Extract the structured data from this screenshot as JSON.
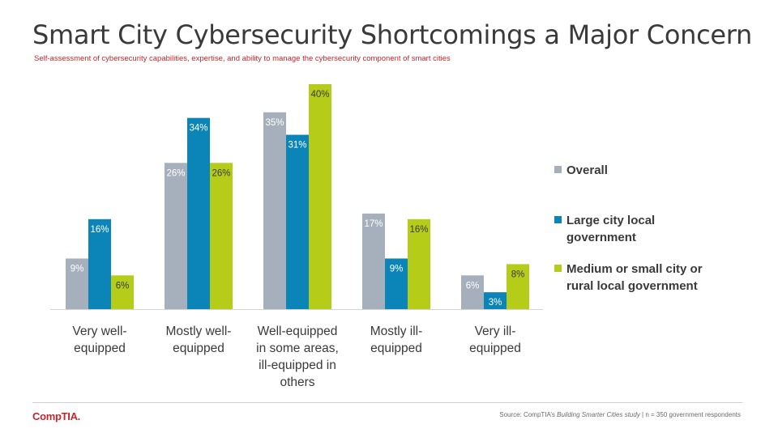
{
  "slide": {
    "title": "Smart City Cybersecurity Shortcomings a Major Concern",
    "subtitle": "Self-assessment of cybersecurity capabilities, expertise, and ability to manage the cybersecurity component of smart cities",
    "logo_text": "CompTIA.",
    "source_prefix": "Source: CompTIA’s ",
    "source_study": "Building Smarter Cities study",
    "source_suffix": " | n = 350 government respondents"
  },
  "chart_data": {
    "type": "bar",
    "categories": [
      [
        "Very well-",
        "equipped"
      ],
      [
        "Mostly well-",
        "equipped"
      ],
      [
        "Well-equipped",
        "in some areas,",
        "ill-equipped in",
        "others"
      ],
      [
        "Mostly ill-",
        "equipped"
      ],
      [
        "Very ill-",
        "equipped"
      ]
    ],
    "series": [
      {
        "name": "Overall",
        "color": "#a6b0bc",
        "values": [
          9,
          26,
          35,
          17,
          6
        ],
        "labels": [
          "9%",
          "26%",
          "35%",
          "17%",
          "6%"
        ]
      },
      {
        "name": "Large city local government",
        "color": "#0b84b8",
        "values": [
          16,
          34,
          31,
          9,
          3
        ],
        "labels": [
          "16%",
          "34%",
          "31%",
          "9%",
          "3%"
        ]
      },
      {
        "name": "Medium or small city or rural local government",
        "color": "#b5cc18",
        "values": [
          6,
          26,
          40,
          16,
          8
        ],
        "labels": [
          "6%",
          "26%",
          "40%",
          "16%",
          "8%"
        ]
      }
    ],
    "legend": [
      [
        "Overall"
      ],
      [
        "Large city local",
        "government"
      ],
      [
        "Medium or small city or",
        "rural local government"
      ]
    ],
    "ylim": [
      0,
      40
    ],
    "legend_position": "right",
    "grid": false
  }
}
